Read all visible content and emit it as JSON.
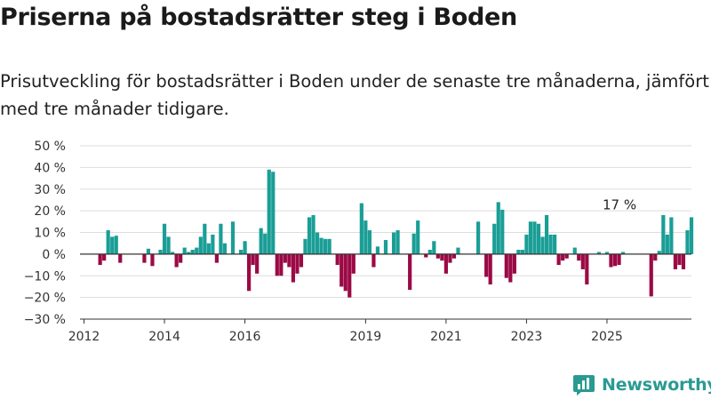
{
  "title": "Priserna på bostadsrätter steg i Boden",
  "subtitle": "Prisutveckling för bostadsrätter i Boden under de senaste tre månaderna, jämfört med tre månader tidigare.",
  "logo": {
    "text": "Newsworthy",
    "icon": "newsworthy-chart-icon",
    "color": "#2a9a92"
  },
  "colors": {
    "positive": "#1a9e96",
    "negative": "#9b0a45",
    "grid": "#dddddd",
    "axis": "#333333"
  },
  "chart_data": {
    "type": "bar",
    "ylim": [
      -30,
      50
    ],
    "yticks": [
      -30,
      -20,
      -10,
      0,
      10,
      20,
      30,
      40,
      50
    ],
    "ytick_labels": [
      "−30 %",
      "−20 %",
      "−10 %",
      "0 %",
      "10 %",
      "20 %",
      "30 %",
      "40 %",
      "50 %"
    ],
    "xlim": [
      2011.9,
      2027.1
    ],
    "xticks": [
      2012,
      2014,
      2016,
      2019,
      2021,
      2023,
      2025
    ],
    "xtick_labels": [
      "2012",
      "2014",
      "2016",
      "2019",
      "2021",
      "2023",
      "2025"
    ],
    "annotation": {
      "text": "17 %",
      "x": 2025.4,
      "y": 17
    },
    "grid": true,
    "values_by_month": [
      {
        "x": 2012.4,
        "y": -5
      },
      {
        "x": 2012.5,
        "y": -3
      },
      {
        "x": 2012.6,
        "y": 11
      },
      {
        "x": 2012.7,
        "y": 8
      },
      {
        "x": 2012.8,
        "y": 8.5
      },
      {
        "x": 2012.9,
        "y": -4
      },
      {
        "x": 2013.5,
        "y": -4
      },
      {
        "x": 2013.6,
        "y": 2.5
      },
      {
        "x": 2013.7,
        "y": -5.5
      },
      {
        "x": 2013.9,
        "y": 2
      },
      {
        "x": 2014.0,
        "y": 14
      },
      {
        "x": 2014.1,
        "y": 8
      },
      {
        "x": 2014.2,
        "y": 1
      },
      {
        "x": 2014.3,
        "y": -6
      },
      {
        "x": 2014.4,
        "y": -4
      },
      {
        "x": 2014.5,
        "y": 3
      },
      {
        "x": 2014.6,
        "y": 1
      },
      {
        "x": 2014.7,
        "y": 2
      },
      {
        "x": 2014.8,
        "y": 3
      },
      {
        "x": 2014.9,
        "y": 8
      },
      {
        "x": 2015.0,
        "y": 14
      },
      {
        "x": 2015.1,
        "y": 5
      },
      {
        "x": 2015.2,
        "y": 9
      },
      {
        "x": 2015.3,
        "y": -4
      },
      {
        "x": 2015.4,
        "y": 14
      },
      {
        "x": 2015.5,
        "y": 5
      },
      {
        "x": 2015.7,
        "y": 15
      },
      {
        "x": 2015.9,
        "y": 2
      },
      {
        "x": 2016.0,
        "y": 6
      },
      {
        "x": 2016.1,
        "y": -17
      },
      {
        "x": 2016.2,
        "y": -5
      },
      {
        "x": 2016.3,
        "y": -9
      },
      {
        "x": 2016.4,
        "y": 12
      },
      {
        "x": 2016.5,
        "y": 9.5
      },
      {
        "x": 2016.6,
        "y": 39
      },
      {
        "x": 2016.7,
        "y": 38
      },
      {
        "x": 2016.8,
        "y": -10
      },
      {
        "x": 2016.9,
        "y": -10
      },
      {
        "x": 2017.0,
        "y": -4
      },
      {
        "x": 2017.1,
        "y": -6
      },
      {
        "x": 2017.2,
        "y": -13
      },
      {
        "x": 2017.3,
        "y": -9
      },
      {
        "x": 2017.4,
        "y": -6
      },
      {
        "x": 2017.5,
        "y": 7
      },
      {
        "x": 2017.6,
        "y": 17
      },
      {
        "x": 2017.7,
        "y": 18
      },
      {
        "x": 2017.8,
        "y": 10
      },
      {
        "x": 2017.9,
        "y": 7.5
      },
      {
        "x": 2018.0,
        "y": 7
      },
      {
        "x": 2018.1,
        "y": 7
      },
      {
        "x": 2018.3,
        "y": -5
      },
      {
        "x": 2018.4,
        "y": -15
      },
      {
        "x": 2018.5,
        "y": -17
      },
      {
        "x": 2018.6,
        "y": -20
      },
      {
        "x": 2018.7,
        "y": -9
      },
      {
        "x": 2018.9,
        "y": 23.5
      },
      {
        "x": 2019.0,
        "y": 15.5
      },
      {
        "x": 2019.1,
        "y": 11
      },
      {
        "x": 2019.2,
        "y": -6
      },
      {
        "x": 2019.3,
        "y": 3.5
      },
      {
        "x": 2019.5,
        "y": 6.5
      },
      {
        "x": 2019.7,
        "y": 10
      },
      {
        "x": 2019.8,
        "y": 11
      },
      {
        "x": 2020.1,
        "y": -16.5
      },
      {
        "x": 2020.2,
        "y": 9.5
      },
      {
        "x": 2020.3,
        "y": 15.5
      },
      {
        "x": 2020.5,
        "y": -1.5
      },
      {
        "x": 2020.6,
        "y": 2
      },
      {
        "x": 2020.7,
        "y": 6
      },
      {
        "x": 2020.8,
        "y": -2
      },
      {
        "x": 2020.9,
        "y": -3
      },
      {
        "x": 2021.0,
        "y": -9
      },
      {
        "x": 2021.1,
        "y": -4
      },
      {
        "x": 2021.2,
        "y": -2
      },
      {
        "x": 2021.3,
        "y": 3
      },
      {
        "x": 2021.8,
        "y": 15
      },
      {
        "x": 2022.0,
        "y": -10.5
      },
      {
        "x": 2022.1,
        "y": -14
      },
      {
        "x": 2022.2,
        "y": 14
      },
      {
        "x": 2022.3,
        "y": 24
      },
      {
        "x": 2022.4,
        "y": 20.5
      },
      {
        "x": 2022.5,
        "y": -11
      },
      {
        "x": 2022.6,
        "y": -13
      },
      {
        "x": 2022.7,
        "y": -9
      },
      {
        "x": 2022.8,
        "y": 2
      },
      {
        "x": 2022.9,
        "y": 2
      },
      {
        "x": 2023.0,
        "y": 9
      },
      {
        "x": 2023.1,
        "y": 15
      },
      {
        "x": 2023.2,
        "y": 15
      },
      {
        "x": 2023.3,
        "y": 14
      },
      {
        "x": 2023.4,
        "y": 8
      },
      {
        "x": 2023.5,
        "y": 18
      },
      {
        "x": 2023.6,
        "y": 9
      },
      {
        "x": 2023.7,
        "y": 9
      },
      {
        "x": 2023.8,
        "y": -5
      },
      {
        "x": 2023.9,
        "y": -3
      },
      {
        "x": 2024.0,
        "y": -2
      },
      {
        "x": 2024.2,
        "y": 3
      },
      {
        "x": 2024.3,
        "y": -3
      },
      {
        "x": 2024.4,
        "y": -7
      },
      {
        "x": 2024.5,
        "y": -14
      },
      {
        "x": 2024.8,
        "y": 1
      },
      {
        "x": 2025.0,
        "y": 1
      },
      {
        "x": 2025.1,
        "y": -6
      },
      {
        "x": 2025.2,
        "y": -5.5
      },
      {
        "x": 2025.3,
        "y": -5
      },
      {
        "x": 2025.4,
        "y": 1
      },
      {
        "x": 2026.1,
        "y": -19.5
      },
      {
        "x": 2026.2,
        "y": -3
      },
      {
        "x": 2026.3,
        "y": 1.5
      },
      {
        "x": 2026.4,
        "y": 18
      },
      {
        "x": 2026.5,
        "y": 9
      },
      {
        "x": 2026.6,
        "y": 17
      },
      {
        "x": 2026.7,
        "y": -7
      },
      {
        "x": 2026.8,
        "y": -5
      },
      {
        "x": 2026.9,
        "y": -7
      },
      {
        "x": 2027.0,
        "y": 11
      },
      {
        "x": 2027.1,
        "y": 17
      }
    ]
  }
}
